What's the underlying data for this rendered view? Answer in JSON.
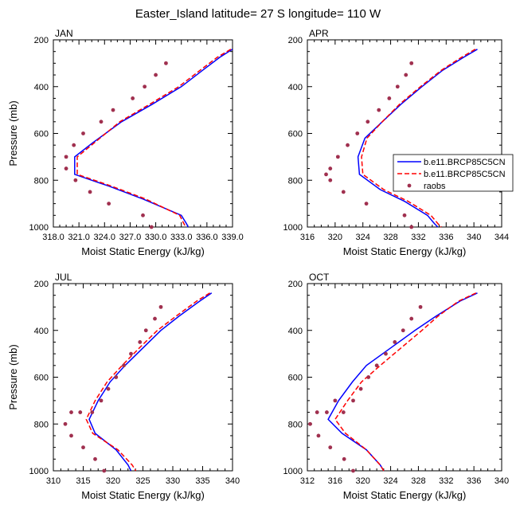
{
  "title": "Easter_Island  latitude= 27 S longitude= 110 W",
  "colors": {
    "model1": "#0000ff",
    "model2": "#ff0000",
    "raobs": "#a0304f",
    "axis": "#000000"
  },
  "legend": {
    "entries": [
      "b.e11.BRCP85C5CN",
      "b.e11.BRCP85C5CN",
      "raobs"
    ]
  },
  "chart_data": [
    {
      "type": "line",
      "label": "JAN",
      "xlabel": "Moist Static Energy (kJ/kg)",
      "ylabel": "Pressure (mb)",
      "xlim": [
        318,
        339
      ],
      "ylim": [
        1000,
        200
      ],
      "xticks": [
        318,
        321,
        324,
        327,
        330,
        333,
        336,
        339
      ],
      "xtick_labels": [
        "318.0",
        "321.0",
        "324.0",
        "327.0",
        "330.0",
        "333.0",
        "336.0",
        "339.0"
      ],
      "yticks": [
        200,
        400,
        600,
        800,
        1000
      ],
      "series": [
        {
          "name": "b.e11.BRCP85C5CN",
          "style": "solid",
          "x": [
            339.0,
            337.5,
            335.5,
            333.0,
            329.6,
            326.0,
            322.6,
            320.5,
            320.5,
            324.5,
            328.5,
            333.0,
            333.6,
            333.8
          ],
          "y": [
            240,
            275,
            330,
            400,
            475,
            550,
            640,
            700,
            775,
            825,
            880,
            950,
            985,
            1000
          ]
        },
        {
          "name": "b.e11.BRCP85C5CN",
          "style": "dashed",
          "x": [
            338.8,
            337.2,
            335.2,
            332.7,
            329.3,
            325.8,
            322.8,
            320.8,
            320.8,
            324.8,
            328.8,
            332.8,
            333.3,
            333.5
          ],
          "y": [
            240,
            275,
            330,
            400,
            475,
            550,
            640,
            700,
            775,
            825,
            880,
            950,
            985,
            1000
          ]
        },
        {
          "name": "raobs",
          "style": "points",
          "x": [
            331.2,
            330.0,
            328.7,
            327.3,
            325.0,
            323.6,
            321.5,
            320.4,
            319.5,
            319.5,
            320.6,
            322.3,
            324.5,
            328.5,
            329.5
          ],
          "y": [
            300,
            350,
            400,
            450,
            500,
            550,
            600,
            650,
            700,
            750,
            800,
            850,
            900,
            950,
            1000
          ]
        }
      ]
    },
    {
      "type": "line",
      "label": "APR",
      "xlabel": "Moist Static Energy (kJ/kg)",
      "ylabel": "",
      "xlim": [
        316,
        344
      ],
      "ylim": [
        1000,
        200
      ],
      "xticks": [
        316,
        320,
        324,
        328,
        332,
        336,
        340,
        344
      ],
      "xtick_labels": [
        "316",
        "320",
        "324",
        "328",
        "332",
        "336",
        "340",
        "344"
      ],
      "yticks": [
        200,
        400,
        600,
        800,
        1000
      ],
      "series": [
        {
          "name": "b.e11.BRCP85C5CN",
          "style": "solid",
          "x": [
            340.5,
            338.5,
            335.5,
            332.5,
            329.5,
            326.8,
            324.3,
            323.3,
            323.5,
            326.5,
            330.0,
            333.3,
            334.3,
            334.8
          ],
          "y": [
            240,
            275,
            330,
            400,
            475,
            550,
            620,
            700,
            775,
            840,
            890,
            950,
            985,
            1000
          ]
        },
        {
          "name": "b.e11.BRCP85C5CN",
          "style": "dashed",
          "x": [
            340.2,
            338.2,
            335.3,
            332.3,
            329.3,
            326.8,
            324.6,
            323.8,
            324.0,
            327.0,
            330.5,
            333.8,
            334.8,
            335.3
          ],
          "y": [
            240,
            275,
            330,
            400,
            475,
            550,
            620,
            700,
            775,
            840,
            890,
            950,
            985,
            1000
          ]
        },
        {
          "name": "raobs",
          "style": "points",
          "x": [
            331.0,
            330.2,
            329.0,
            327.8,
            326.3,
            324.7,
            323.2,
            321.8,
            320.4,
            319.3,
            318.7,
            319.3,
            321.2,
            324.5,
            330.0,
            331.0
          ],
          "y": [
            300,
            350,
            400,
            450,
            500,
            550,
            600,
            650,
            700,
            750,
            775,
            800,
            850,
            900,
            950,
            1000
          ]
        }
      ]
    },
    {
      "type": "line",
      "label": "JUL",
      "xlabel": "Moist Static Energy (kJ/kg)",
      "ylabel": "Pressure (mb)",
      "xlim": [
        310,
        340
      ],
      "ylim": [
        1000,
        200
      ],
      "xticks": [
        310,
        315,
        320,
        325,
        330,
        335,
        340
      ],
      "xtick_labels": [
        "310",
        "315",
        "320",
        "325",
        "330",
        "335",
        "340"
      ],
      "yticks": [
        200,
        400,
        600,
        800,
        1000
      ],
      "series": [
        {
          "name": "b.e11.BRCP85C5CN",
          "style": "solid",
          "x": [
            336.5,
            334.5,
            331.0,
            328.0,
            325.0,
            322.0,
            319.5,
            317.5,
            316.0,
            317.0,
            320.5,
            322.5,
            323.0
          ],
          "y": [
            240,
            275,
            340,
            400,
            475,
            550,
            620,
            700,
            780,
            840,
            910,
            975,
            1000
          ]
        },
        {
          "name": "b.e11.BRCP85C5CN",
          "style": "dashed",
          "x": [
            336.2,
            334.0,
            330.5,
            327.4,
            324.4,
            321.5,
            319.0,
            317.0,
            315.5,
            316.6,
            320.8,
            323.2,
            323.8
          ],
          "y": [
            240,
            275,
            340,
            400,
            475,
            550,
            620,
            700,
            780,
            840,
            910,
            975,
            1000
          ]
        },
        {
          "name": "raobs",
          "style": "points",
          "x": [
            328.0,
            327.0,
            325.5,
            324.5,
            323.0,
            321.8,
            320.5,
            319.2,
            318.0,
            316.5,
            314.5,
            313.0,
            312.0,
            313.0,
            315.0,
            317.0,
            318.5
          ],
          "y": [
            300,
            350,
            400,
            450,
            500,
            550,
            600,
            650,
            700,
            750,
            750,
            750,
            800,
            850,
            900,
            950,
            1000
          ]
        }
      ]
    },
    {
      "type": "line",
      "label": "OCT",
      "xlabel": "Moist Static Energy (kJ/kg)",
      "ylabel": "",
      "xlim": [
        312,
        340
      ],
      "ylim": [
        1000,
        200
      ],
      "xticks": [
        312,
        316,
        320,
        324,
        328,
        332,
        336,
        340
      ],
      "xtick_labels": [
        "312",
        "316",
        "320",
        "324",
        "328",
        "332",
        "336",
        "340"
      ],
      "yticks": [
        200,
        400,
        600,
        800,
        1000
      ],
      "series": [
        {
          "name": "b.e11.BRCP85C5CN",
          "style": "solid",
          "x": [
            336.5,
            334.0,
            330.5,
            327.5,
            324.0,
            320.5,
            318.5,
            316.5,
            315.0,
            317.0,
            320.5,
            322.5,
            323.0
          ],
          "y": [
            240,
            275,
            340,
            400,
            475,
            550,
            620,
            700,
            780,
            840,
            910,
            975,
            1000
          ]
        },
        {
          "name": "b.e11.BRCP85C5CN",
          "style": "dashed",
          "x": [
            336.3,
            333.8,
            330.8,
            328.5,
            325.5,
            322.5,
            319.8,
            317.8,
            316.0,
            317.5,
            320.5,
            322.5,
            323.0
          ],
          "y": [
            240,
            275,
            340,
            400,
            475,
            550,
            620,
            700,
            780,
            840,
            910,
            975,
            1000
          ]
        },
        {
          "name": "raobs",
          "style": "points",
          "x": [
            328.3,
            327.0,
            325.8,
            324.6,
            323.3,
            322.0,
            320.8,
            319.7,
            318.6,
            317.2,
            316.0,
            314.8,
            313.4,
            312.4,
            313.6,
            315.3,
            317.3,
            318.6
          ],
          "y": [
            300,
            350,
            400,
            450,
            500,
            550,
            600,
            650,
            700,
            750,
            700,
            750,
            750,
            800,
            850,
            900,
            950,
            1000
          ]
        }
      ]
    }
  ]
}
